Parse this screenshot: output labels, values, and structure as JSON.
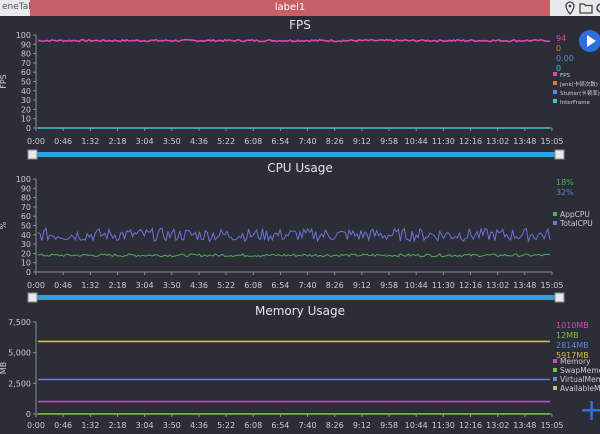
{
  "tabs": {
    "left": "eneTab",
    "active": "label1"
  },
  "toolbar_icons": [
    "location-icon",
    "folder-icon",
    "settings-icon"
  ],
  "x_ticks": [
    "0:00",
    "0:46",
    "1:32",
    "2:18",
    "3:04",
    "3:50",
    "4:36",
    "5:22",
    "6:08",
    "6:54",
    "7:40",
    "8:26",
    "9:12",
    "9:58",
    "10:44",
    "11:30",
    "12:16",
    "13:02",
    "13:48",
    "15:05"
  ],
  "charts": [
    {
      "id": "fps",
      "title": "FPS",
      "ylabel": "FPS",
      "yticks": [
        "0",
        "10",
        "20",
        "30",
        "40",
        "50",
        "60",
        "70",
        "80",
        "90",
        "100"
      ],
      "ylim": [
        0,
        100
      ],
      "values": [
        "94",
        "0",
        "0.00",
        "0"
      ],
      "value_colors": [
        "#d44ab8",
        "#e07a3a",
        "#5f86d8",
        "#46c3d1"
      ],
      "legend": [
        "FPS",
        "Jank(卡顿次数)",
        "Stutter(卡顿率)",
        "InterFrame"
      ],
      "legend_colors": [
        "#d44ab8",
        "#e07a3a",
        "#5f86d8",
        "#46c3d1"
      ]
    },
    {
      "id": "cpu",
      "title": "CPU Usage",
      "ylabel": "%",
      "yticks": [
        "0",
        "10",
        "20",
        "30",
        "40",
        "50",
        "60",
        "70",
        "80",
        "90",
        "100"
      ],
      "ylim": [
        0,
        100
      ],
      "values": [
        "18%",
        "32%"
      ],
      "value_colors": [
        "#4caf50",
        "#6d72d8"
      ],
      "legend": [
        "AppCPU",
        "TotalCPU"
      ],
      "legend_colors": [
        "#4caf50",
        "#6d72d8"
      ]
    },
    {
      "id": "mem",
      "title": "Memory Usage",
      "ylabel": "MB",
      "yticks": [
        "0",
        "2,500",
        "5,000",
        "7,500"
      ],
      "ylim": [
        0,
        7500
      ],
      "values": [
        "1010MB",
        "12MB",
        "2814MB",
        "5917MB"
      ],
      "value_colors": [
        "#d44ab8",
        "#7bc043",
        "#5f86d8",
        "#d9b84b"
      ],
      "legend": [
        "Memory",
        "SwapMeme",
        "VirtualMem",
        "AvailableM"
      ],
      "legend_colors": [
        "#d44ab8",
        "#7bc043",
        "#5f86d8",
        "#d9b84b"
      ]
    }
  ],
  "chart_data": [
    {
      "type": "line",
      "title": "FPS",
      "ylabel": "FPS",
      "ylim": [
        0,
        100
      ],
      "x": [
        "0:00",
        "15:05"
      ],
      "series": [
        {
          "name": "FPS",
          "values": [
            94,
            94
          ]
        },
        {
          "name": "InterFrame",
          "values": [
            0,
            0
          ]
        }
      ]
    },
    {
      "type": "line",
      "title": "CPU Usage",
      "ylabel": "%",
      "ylim": [
        0,
        100
      ],
      "x": [
        "0:00",
        "15:05"
      ],
      "series": [
        {
          "name": "AppCPU",
          "values": [
            18,
            18
          ]
        },
        {
          "name": "TotalCPU",
          "values": [
            40,
            32
          ]
        }
      ]
    },
    {
      "type": "line",
      "title": "Memory Usage",
      "ylabel": "MB",
      "ylim": [
        0,
        7500
      ],
      "x": [
        "0:00",
        "15:05"
      ],
      "series": [
        {
          "name": "Memory",
          "values": [
            1010,
            1010
          ]
        },
        {
          "name": "SwapMeme",
          "values": [
            12,
            12
          ]
        },
        {
          "name": "VirtualMem",
          "values": [
            2814,
            2814
          ]
        },
        {
          "name": "AvailableM",
          "values": [
            5917,
            5917
          ]
        }
      ]
    }
  ]
}
